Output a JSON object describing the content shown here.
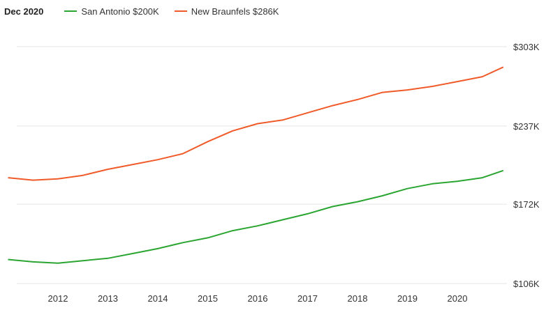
{
  "header": {
    "date_label": "Dec 2020"
  },
  "legend": [
    {
      "label": "San Antonio $200K",
      "color": "#2aa531"
    },
    {
      "label": "New Braunfels $286K",
      "color": "#f05a28"
    }
  ],
  "chart_data": {
    "type": "line",
    "title": "",
    "xlabel": "",
    "ylabel": "",
    "ylim": [
      106,
      303
    ],
    "xlim": [
      2011.0,
      2021.0
    ],
    "grid": true,
    "y_ticks": [
      {
        "value": 303,
        "label": "$303K"
      },
      {
        "value": 237,
        "label": "$237K"
      },
      {
        "value": 172,
        "label": "$172K"
      },
      {
        "value": 106,
        "label": "$106K"
      }
    ],
    "x_ticks": [
      {
        "value": 2012,
        "label": "2012"
      },
      {
        "value": 2013,
        "label": "2013"
      },
      {
        "value": 2014,
        "label": "2014"
      },
      {
        "value": 2015,
        "label": "2015"
      },
      {
        "value": 2016,
        "label": "2016"
      },
      {
        "value": 2017,
        "label": "2017"
      },
      {
        "value": 2018,
        "label": "2018"
      },
      {
        "value": 2019,
        "label": "2019"
      },
      {
        "value": 2020,
        "label": "2020"
      }
    ],
    "series": [
      {
        "name": "San Antonio",
        "color": "#2aa531",
        "x": [
          2011.0,
          2011.5,
          2012.0,
          2012.5,
          2013.0,
          2013.5,
          2014.0,
          2014.5,
          2015.0,
          2015.5,
          2016.0,
          2016.5,
          2017.0,
          2017.5,
          2018.0,
          2018.5,
          2019.0,
          2019.5,
          2020.0,
          2020.5,
          2020.92
        ],
        "values": [
          126,
          124,
          123,
          125,
          127,
          131,
          135,
          140,
          144,
          150,
          154,
          159,
          164,
          170,
          174,
          179,
          185,
          189,
          191,
          194,
          200
        ]
      },
      {
        "name": "New Braunfels",
        "color": "#f05a28",
        "x": [
          2011.0,
          2011.5,
          2012.0,
          2012.5,
          2013.0,
          2013.5,
          2014.0,
          2014.5,
          2015.0,
          2015.5,
          2016.0,
          2016.5,
          2017.0,
          2017.5,
          2018.0,
          2018.5,
          2019.0,
          2019.5,
          2020.0,
          2020.5,
          2020.92
        ],
        "values": [
          194,
          192,
          193,
          196,
          201,
          205,
          209,
          214,
          224,
          233,
          239,
          242,
          248,
          254,
          259,
          265,
          267,
          270,
          274,
          278,
          286
        ]
      }
    ]
  }
}
